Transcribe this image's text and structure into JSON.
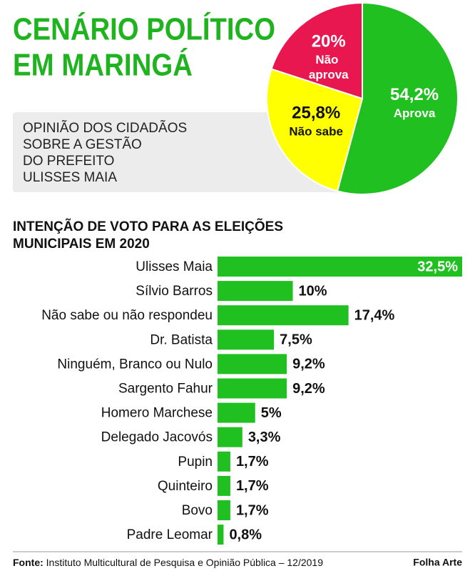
{
  "title": [
    "CENÁRIO POLÍTICO",
    "EM MARINGÁ"
  ],
  "chart_data": [
    {
      "type": "pie",
      "title": [
        "OPINIÃO DOS CIDADÃOS",
        "SOBRE A GESTÃO",
        "DO PREFEITO",
        "ULISSES MAIA"
      ],
      "categories": [
        "Aprova",
        "Não sabe",
        "Não aprova"
      ],
      "values": [
        54.2,
        25.8,
        20
      ],
      "value_labels": [
        "54,2%",
        "25,8%",
        "20%"
      ],
      "colors": [
        "#21c021",
        "#ffff00",
        "#e8174f"
      ]
    },
    {
      "type": "bar",
      "orientation": "horizontal",
      "title": [
        "INTENÇÃO DE VOTO PARA AS ELEIÇÕES",
        "MUNICIPAIS EM 2020"
      ],
      "categories": [
        "Ulisses Maia",
        "Sílvio Barros",
        "Não sabe ou não respondeu",
        "Dr. Batista",
        "Ninguém, Branco ou Nulo",
        "Sargento Fahur",
        "Homero Marchese",
        "Delegado Jacovós",
        "Pupin",
        "Quinteiro",
        "Bovo",
        "Padre Leomar"
      ],
      "values": [
        32.5,
        10,
        17.4,
        7.5,
        9.2,
        9.2,
        5,
        3.3,
        1.7,
        1.7,
        1.7,
        0.8
      ],
      "value_labels": [
        "32,5%",
        "10%",
        "17,4%",
        "7,5%",
        "9,2%",
        "9,2%",
        "5%",
        "3,3%",
        "1,7%",
        "1,7%",
        "1,7%",
        "0,8%"
      ],
      "color": "#21c021"
    }
  ],
  "footer": {
    "label": "Fonte:",
    "source": "Instituto Multicultural de Pesquisa e Opinião Pública – 12/2019",
    "credit": "Folha Arte"
  }
}
